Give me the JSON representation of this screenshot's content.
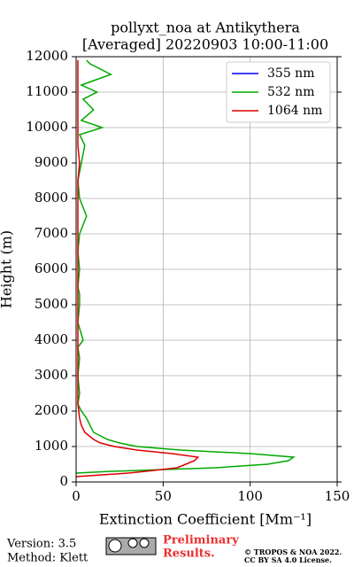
{
  "chart_data": {
    "type": "line",
    "title": "pollyxt_noa at Antikythera",
    "subtitle": "[Averaged] 20220903 10:00-11:00",
    "xlabel": "Extinction Coefficient [Mm⁻¹]",
    "ylabel": "Height (m)",
    "xlim": [
      0,
      150
    ],
    "xticks": [
      0,
      50,
      100,
      150
    ],
    "ylim": [
      0,
      12000
    ],
    "yticks": [
      0,
      1000,
      2000,
      3000,
      4000,
      5000,
      6000,
      7000,
      8000,
      9000,
      10000,
      11000,
      12000
    ],
    "grid": true,
    "legend": "upper right",
    "heights": [
      150,
      200,
      250,
      300,
      400,
      500,
      600,
      700,
      800,
      900,
      1000,
      1100,
      1200,
      1400,
      1600,
      1800,
      2000,
      2200,
      2500,
      3000,
      3500,
      3800,
      4000,
      4500,
      5000,
      5300,
      5500,
      6000,
      6500,
      7000,
      7500,
      8000,
      8500,
      9000,
      9500,
      9800,
      10000,
      10200,
      10500,
      10800,
      11000,
      11200,
      11500,
      11800,
      11900
    ],
    "series": [
      {
        "name": "355 nm",
        "color": "#0000ff",
        "values": [
          null,
          null,
          null,
          null,
          null,
          null,
          null,
          null,
          null,
          null,
          null,
          null,
          null,
          null,
          null,
          null,
          null,
          null,
          null,
          null,
          null,
          null,
          null,
          null,
          null,
          null,
          null,
          null,
          null,
          null,
          null,
          null,
          null,
          null,
          null,
          null,
          null,
          null,
          null,
          null,
          null,
          null,
          null,
          null,
          null
        ]
      },
      {
        "name": "532 nm",
        "color": "#00aa00",
        "values": [
          null,
          null,
          0,
          20,
          80,
          110,
          122,
          125,
          100,
          60,
          35,
          25,
          18,
          10,
          8,
          6,
          3,
          1,
          2,
          1,
          2,
          1,
          4,
          1,
          2,
          2,
          1,
          2,
          1,
          2,
          6,
          2,
          1,
          3,
          5,
          2,
          15,
          3,
          10,
          4,
          12,
          3,
          20,
          8,
          6
        ]
      },
      {
        "name": "1064 nm",
        "color": "#dd0000",
        "values": [
          0,
          15,
          30,
          40,
          58,
          63,
          68,
          70,
          55,
          35,
          22,
          14,
          10,
          5,
          3,
          2,
          1.5,
          1,
          1,
          1,
          1,
          1,
          1,
          1,
          1,
          1,
          1,
          1,
          1,
          1,
          1,
          1,
          1,
          2,
          1,
          1,
          1,
          1,
          1,
          1,
          1,
          1,
          1,
          1,
          1
        ]
      }
    ]
  },
  "footer": {
    "version": "Version: 3.5",
    "method": "Method: Klett",
    "preliminary": [
      "Preliminary",
      "Results."
    ],
    "copyright": [
      "© TROPOS & NOA 2022.",
      "CC BY SA 4.0 License."
    ]
  }
}
